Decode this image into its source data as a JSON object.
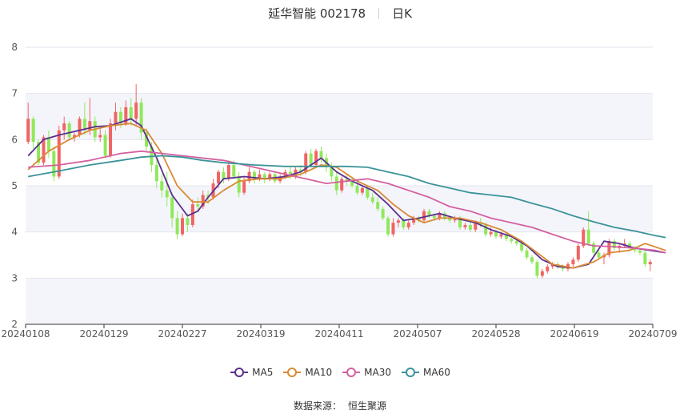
{
  "header": {
    "stock": "延华智能 002178",
    "period": "日K"
  },
  "source": {
    "label": "数据来源：",
    "value": "恒生聚源"
  },
  "chart_data": {
    "type": "candlestick",
    "ylim": [
      2,
      8
    ],
    "yticks": [
      "2",
      "3",
      "4",
      "5",
      "6",
      "7",
      "8"
    ],
    "xticks": [
      "20240108",
      "20240129",
      "20240227",
      "20240319",
      "20240411",
      "20240507",
      "20240528",
      "20240619",
      "20240709"
    ],
    "grid": true,
    "legend_position": "bottom",
    "up_color": "#f06464",
    "down_color": "#8fe85a",
    "candles": [
      [
        5.95,
        6.45,
        5.9,
        6.8
      ],
      [
        6.45,
        5.95,
        5.8,
        6.5
      ],
      [
        5.95,
        5.5,
        5.45,
        6.0
      ],
      [
        5.5,
        6.05,
        5.45,
        6.1
      ],
      [
        6.05,
        5.75,
        5.6,
        6.2
      ],
      [
        5.75,
        5.2,
        5.1,
        5.85
      ],
      [
        5.2,
        6.2,
        5.15,
        6.3
      ],
      [
        6.2,
        6.35,
        6.0,
        6.5
      ],
      [
        6.35,
        6.05,
        6.0,
        6.4
      ],
      [
        6.05,
        6.1,
        5.95,
        6.15
      ],
      [
        6.1,
        6.45,
        6.05,
        6.5
      ],
      [
        6.45,
        6.2,
        6.1,
        6.8
      ],
      [
        6.2,
        6.4,
        6.1,
        6.9
      ],
      [
        6.4,
        6.05,
        5.95,
        6.5
      ],
      [
        6.05,
        6.1,
        5.95,
        6.3
      ],
      [
        6.1,
        5.65,
        5.6,
        6.2
      ],
      [
        5.65,
        6.35,
        5.6,
        6.45
      ],
      [
        6.35,
        6.6,
        6.2,
        6.8
      ],
      [
        6.6,
        6.35,
        6.25,
        6.7
      ],
      [
        6.35,
        6.7,
        6.3,
        6.85
      ],
      [
        6.7,
        6.45,
        6.3,
        6.9
      ],
      [
        6.45,
        6.8,
        6.3,
        7.2
      ],
      [
        6.8,
        6.15,
        6.0,
        6.9
      ],
      [
        6.15,
        5.85,
        5.75,
        6.25
      ],
      [
        5.85,
        5.45,
        5.3,
        5.95
      ],
      [
        5.45,
        5.1,
        4.95,
        5.6
      ],
      [
        5.1,
        4.9,
        4.75,
        5.25
      ],
      [
        4.9,
        4.75,
        4.55,
        5.3
      ],
      [
        4.75,
        4.3,
        4.1,
        4.85
      ],
      [
        4.3,
        3.95,
        3.85,
        4.45
      ],
      [
        3.95,
        4.3,
        3.9,
        4.4
      ],
      [
        4.3,
        4.15,
        4.0,
        4.4
      ],
      [
        4.15,
        4.6,
        4.1,
        4.7
      ],
      [
        4.6,
        4.55,
        4.45,
        4.75
      ],
      [
        4.55,
        4.8,
        4.5,
        4.9
      ],
      [
        4.8,
        4.75,
        4.6,
        4.9
      ],
      [
        4.75,
        5.05,
        4.7,
        5.15
      ],
      [
        5.05,
        5.3,
        4.95,
        5.35
      ],
      [
        5.3,
        5.15,
        5.05,
        5.4
      ],
      [
        5.15,
        5.45,
        5.1,
        5.55
      ],
      [
        5.45,
        5.2,
        5.15,
        5.55
      ],
      [
        5.2,
        4.85,
        4.75,
        5.3
      ],
      [
        4.85,
        5.1,
        4.8,
        5.2
      ],
      [
        5.1,
        5.3,
        5.05,
        5.4
      ],
      [
        5.3,
        5.15,
        5.05,
        5.35
      ],
      [
        5.15,
        5.25,
        5.1,
        5.35
      ],
      [
        5.25,
        5.15,
        5.05,
        5.3
      ],
      [
        5.15,
        5.25,
        5.1,
        5.3
      ],
      [
        5.25,
        5.1,
        5.05,
        5.3
      ],
      [
        5.1,
        5.2,
        5.05,
        5.25
      ],
      [
        5.2,
        5.3,
        5.15,
        5.35
      ],
      [
        5.3,
        5.2,
        5.15,
        5.4
      ],
      [
        5.2,
        5.35,
        5.15,
        5.4
      ],
      [
        5.35,
        5.3,
        5.2,
        5.45
      ],
      [
        5.3,
        5.7,
        5.25,
        5.75
      ],
      [
        5.7,
        5.45,
        5.4,
        5.8
      ],
      [
        5.45,
        5.75,
        5.4,
        5.8
      ],
      [
        5.75,
        5.6,
        5.5,
        5.85
      ],
      [
        5.6,
        5.4,
        5.3,
        5.7
      ],
      [
        5.4,
        5.2,
        5.1,
        5.5
      ],
      [
        5.2,
        4.9,
        4.8,
        5.3
      ],
      [
        4.9,
        5.15,
        4.85,
        5.2
      ],
      [
        5.15,
        5.1,
        5.0,
        5.25
      ],
      [
        5.1,
        5.0,
        4.95,
        5.2
      ],
      [
        5.0,
        4.85,
        4.8,
        5.1
      ],
      [
        4.85,
        4.95,
        4.8,
        5.0
      ],
      [
        4.95,
        4.75,
        4.7,
        5.0
      ],
      [
        4.75,
        4.65,
        4.6,
        4.85
      ],
      [
        4.65,
        4.5,
        4.45,
        4.75
      ],
      [
        4.5,
        4.3,
        4.25,
        4.55
      ],
      [
        4.3,
        3.95,
        3.9,
        4.35
      ],
      [
        3.95,
        4.2,
        3.9,
        4.3
      ],
      [
        4.2,
        4.25,
        4.1,
        4.3
      ],
      [
        4.25,
        4.1,
        4.05,
        4.3
      ],
      [
        4.1,
        4.2,
        4.05,
        4.25
      ],
      [
        4.2,
        4.3,
        4.15,
        4.35
      ],
      [
        4.3,
        4.25,
        4.2,
        4.35
      ],
      [
        4.25,
        4.45,
        4.2,
        4.5
      ],
      [
        4.45,
        4.35,
        4.3,
        4.5
      ],
      [
        4.35,
        4.3,
        4.25,
        4.4
      ],
      [
        4.3,
        4.4,
        4.25,
        4.45
      ],
      [
        4.4,
        4.3,
        4.25,
        4.45
      ],
      [
        4.3,
        4.25,
        4.2,
        4.35
      ],
      [
        4.25,
        4.3,
        4.2,
        4.35
      ],
      [
        4.3,
        4.1,
        4.05,
        4.35
      ],
      [
        4.1,
        4.15,
        4.05,
        4.2
      ],
      [
        4.15,
        4.05,
        4.0,
        4.2
      ],
      [
        4.05,
        4.2,
        4.0,
        4.25
      ],
      [
        4.2,
        4.15,
        4.1,
        4.3
      ],
      [
        4.15,
        3.95,
        3.9,
        4.2
      ],
      [
        3.95,
        4.0,
        3.9,
        4.1
      ],
      [
        4.0,
        3.9,
        3.85,
        4.05
      ],
      [
        3.9,
        3.95,
        3.85,
        4.0
      ],
      [
        3.95,
        3.85,
        3.8,
        4.0
      ],
      [
        3.85,
        3.8,
        3.75,
        3.9
      ],
      [
        3.8,
        3.75,
        3.7,
        3.85
      ],
      [
        3.75,
        3.6,
        3.55,
        3.8
      ],
      [
        3.6,
        3.45,
        3.4,
        3.65
      ],
      [
        3.45,
        3.35,
        3.3,
        3.5
      ],
      [
        3.35,
        3.05,
        3.0,
        3.4
      ],
      [
        3.05,
        3.15,
        3.0,
        3.2
      ],
      [
        3.15,
        3.25,
        3.1,
        3.3
      ],
      [
        3.25,
        3.3,
        3.2,
        3.35
      ],
      [
        3.3,
        3.25,
        3.2,
        3.35
      ],
      [
        3.25,
        3.2,
        3.15,
        3.3
      ],
      [
        3.2,
        3.3,
        3.15,
        3.35
      ],
      [
        3.3,
        3.4,
        3.25,
        3.45
      ],
      [
        3.4,
        3.7,
        3.35,
        3.75
      ],
      [
        3.7,
        4.05,
        3.65,
        4.1
      ],
      [
        4.05,
        3.75,
        3.7,
        4.45
      ],
      [
        3.75,
        3.55,
        3.5,
        3.8
      ],
      [
        3.55,
        3.45,
        3.4,
        3.6
      ],
      [
        3.45,
        3.5,
        3.3,
        3.55
      ],
      [
        3.5,
        3.8,
        3.45,
        3.85
      ],
      [
        3.8,
        3.65,
        3.6,
        3.85
      ],
      [
        3.65,
        3.7,
        3.55,
        3.75
      ],
      [
        3.7,
        3.75,
        3.65,
        3.85
      ],
      [
        3.75,
        3.65,
        3.6,
        3.8
      ],
      [
        3.65,
        3.6,
        3.55,
        3.7
      ],
      [
        3.6,
        3.55,
        3.5,
        3.65
      ],
      [
        3.55,
        3.3,
        3.25,
        3.6
      ],
      [
        3.3,
        3.35,
        3.15,
        3.4
      ]
    ],
    "ma_series": [
      {
        "name": "MA5",
        "color": "#5b2f8f",
        "points": [
          [
            0,
            5.65
          ],
          [
            3,
            6.0
          ],
          [
            6,
            6.1
          ],
          [
            10,
            6.2
          ],
          [
            13,
            6.28
          ],
          [
            16,
            6.3
          ],
          [
            20,
            6.45
          ],
          [
            22,
            6.3
          ],
          [
            25,
            5.6
          ],
          [
            28,
            4.8
          ],
          [
            31,
            4.35
          ],
          [
            33,
            4.45
          ],
          [
            35,
            4.75
          ],
          [
            38,
            5.15
          ],
          [
            42,
            5.2
          ],
          [
            46,
            5.15
          ],
          [
            50,
            5.2
          ],
          [
            53,
            5.3
          ],
          [
            57,
            5.6
          ],
          [
            60,
            5.3
          ],
          [
            63,
            5.1
          ],
          [
            67,
            4.9
          ],
          [
            70,
            4.6
          ],
          [
            73,
            4.25
          ],
          [
            76,
            4.3
          ],
          [
            80,
            4.4
          ],
          [
            83,
            4.3
          ],
          [
            87,
            4.2
          ],
          [
            90,
            4.05
          ],
          [
            94,
            3.9
          ],
          [
            97,
            3.7
          ],
          [
            100,
            3.4
          ],
          [
            103,
            3.25
          ],
          [
            106,
            3.22
          ],
          [
            109,
            3.3
          ],
          [
            112,
            3.8
          ],
          [
            115,
            3.75
          ],
          [
            118,
            3.65
          ],
          [
            121,
            3.6
          ],
          [
            124,
            3.55
          ]
        ]
      },
      {
        "name": "MA10",
        "color": "#d98a35",
        "points": [
          [
            0,
            5.35
          ],
          [
            4,
            5.75
          ],
          [
            8,
            6.0
          ],
          [
            12,
            6.2
          ],
          [
            16,
            6.3
          ],
          [
            20,
            6.35
          ],
          [
            23,
            6.2
          ],
          [
            26,
            5.7
          ],
          [
            29,
            5.0
          ],
          [
            32,
            4.65
          ],
          [
            35,
            4.65
          ],
          [
            38,
            4.9
          ],
          [
            41,
            5.1
          ],
          [
            45,
            5.15
          ],
          [
            49,
            5.15
          ],
          [
            53,
            5.25
          ],
          [
            57,
            5.45
          ],
          [
            60,
            5.4
          ],
          [
            64,
            5.1
          ],
          [
            68,
            4.9
          ],
          [
            71,
            4.6
          ],
          [
            74,
            4.35
          ],
          [
            77,
            4.2
          ],
          [
            80,
            4.3
          ],
          [
            84,
            4.3
          ],
          [
            88,
            4.2
          ],
          [
            92,
            4.05
          ],
          [
            96,
            3.8
          ],
          [
            99,
            3.55
          ],
          [
            102,
            3.3
          ],
          [
            106,
            3.22
          ],
          [
            110,
            3.35
          ],
          [
            113,
            3.55
          ],
          [
            117,
            3.6
          ],
          [
            120,
            3.75
          ],
          [
            124,
            3.6
          ]
        ]
      },
      {
        "name": "MA30",
        "color": "#d3609f",
        "points": [
          [
            0,
            5.4
          ],
          [
            6,
            5.45
          ],
          [
            12,
            5.55
          ],
          [
            18,
            5.7
          ],
          [
            22,
            5.75
          ],
          [
            26,
            5.7
          ],
          [
            30,
            5.65
          ],
          [
            34,
            5.6
          ],
          [
            38,
            5.55
          ],
          [
            42,
            5.45
          ],
          [
            46,
            5.35
          ],
          [
            50,
            5.25
          ],
          [
            54,
            5.15
          ],
          [
            58,
            5.05
          ],
          [
            62,
            5.1
          ],
          [
            66,
            5.15
          ],
          [
            70,
            5.05
          ],
          [
            74,
            4.9
          ],
          [
            78,
            4.75
          ],
          [
            82,
            4.55
          ],
          [
            86,
            4.45
          ],
          [
            90,
            4.3
          ],
          [
            94,
            4.2
          ],
          [
            98,
            4.1
          ],
          [
            102,
            3.95
          ],
          [
            106,
            3.8
          ],
          [
            110,
            3.7
          ],
          [
            114,
            3.68
          ],
          [
            118,
            3.65
          ],
          [
            122,
            3.6
          ],
          [
            124,
            3.55
          ]
        ]
      },
      {
        "name": "MA60",
        "color": "#3b9399",
        "points": [
          [
            0,
            5.2
          ],
          [
            6,
            5.32
          ],
          [
            12,
            5.45
          ],
          [
            18,
            5.55
          ],
          [
            22,
            5.62
          ],
          [
            26,
            5.65
          ],
          [
            30,
            5.62
          ],
          [
            34,
            5.55
          ],
          [
            38,
            5.5
          ],
          [
            44,
            5.45
          ],
          [
            50,
            5.42
          ],
          [
            56,
            5.42
          ],
          [
            62,
            5.42
          ],
          [
            66,
            5.4
          ],
          [
            70,
            5.3
          ],
          [
            74,
            5.2
          ],
          [
            78,
            5.05
          ],
          [
            82,
            4.95
          ],
          [
            86,
            4.85
          ],
          [
            90,
            4.8
          ],
          [
            94,
            4.75
          ],
          [
            98,
            4.62
          ],
          [
            102,
            4.5
          ],
          [
            106,
            4.35
          ],
          [
            110,
            4.22
          ],
          [
            114,
            4.1
          ],
          [
            118,
            4.02
          ],
          [
            122,
            3.92
          ],
          [
            124,
            3.88
          ]
        ]
      }
    ]
  }
}
